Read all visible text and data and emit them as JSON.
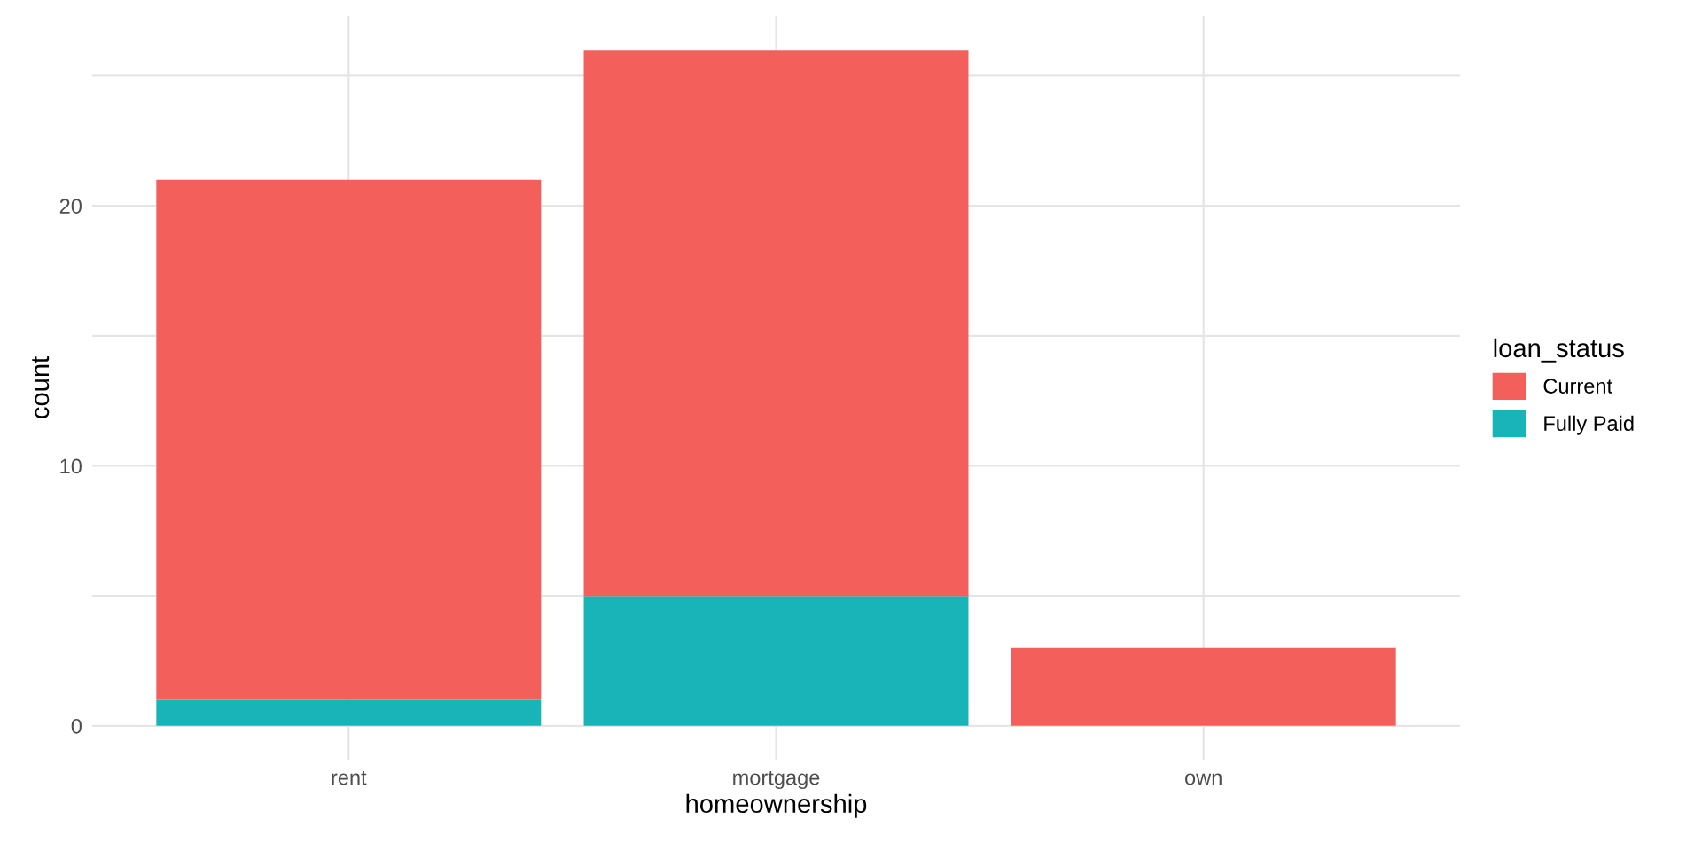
{
  "chart_data": {
    "type": "bar",
    "xlabel": "homeownership",
    "ylabel": "count",
    "legend_title": "loan_status",
    "categories": [
      "rent",
      "mortgage",
      "own"
    ],
    "series": [
      {
        "name": "Fully Paid",
        "color": "#19b4b8",
        "values": [
          1,
          5,
          0
        ]
      },
      {
        "name": "Current",
        "color": "#f35f5a",
        "values": [
          20,
          21,
          3
        ]
      }
    ],
    "stacked": true,
    "ylim": [
      -1.3,
      27.3
    ],
    "yticks": [
      0,
      {
        "value": 5,
        "label": null
      },
      10,
      {
        "value": 15,
        "label": null
      },
      20,
      {
        "value": 25,
        "label": null
      }
    ],
    "grid": true,
    "legend": "right"
  }
}
